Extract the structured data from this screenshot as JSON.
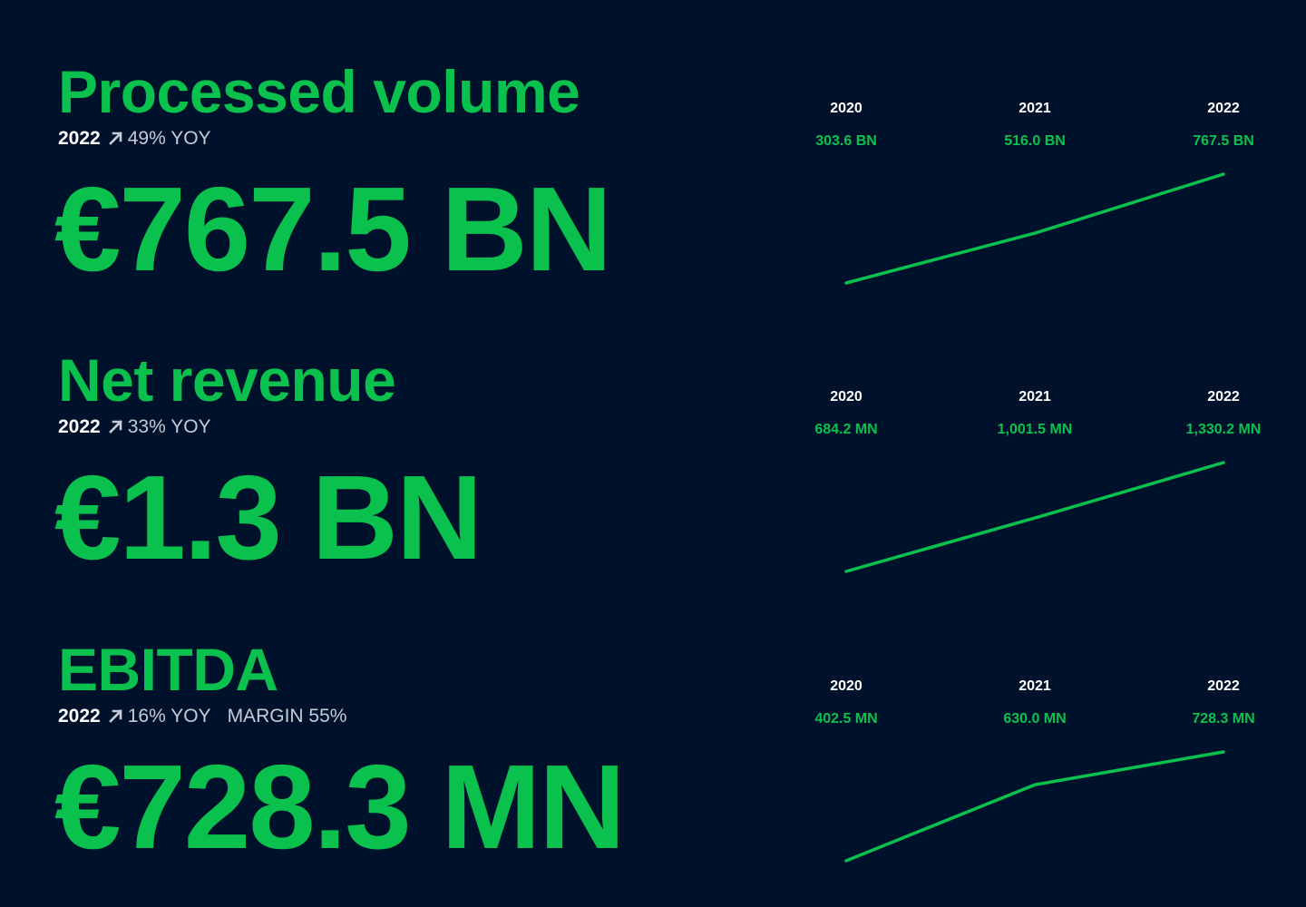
{
  "colors": {
    "background": "#00112c",
    "accent": "#0bc14e",
    "text_white": "#ffffff",
    "text_muted": "#c6ccd6"
  },
  "icons": {
    "trend": "arrow-up-right-icon"
  },
  "metrics": [
    {
      "title": "Processed volume",
      "year": "2022",
      "yoy": "49% YOY",
      "margin": "",
      "headline": "€767.5 BN"
    },
    {
      "title": "Net revenue",
      "year": "2022",
      "yoy": "33% YOY",
      "margin": "",
      "headline": "€1.3 BN"
    },
    {
      "title": "EBITDA",
      "year": "2022",
      "yoy": "16% YOY",
      "margin": "MARGIN 55%",
      "headline": "€728.3 MN"
    }
  ],
  "chart_data": [
    {
      "type": "line",
      "categories": [
        "2020",
        "2021",
        "2022"
      ],
      "values": [
        303.6,
        516.0,
        767.5
      ],
      "value_labels": [
        "303.6 BN",
        "516.0 BN",
        "767.5 BN"
      ],
      "unit": "BN",
      "color": "#0bc14e",
      "grid": false,
      "axes_visible": false
    },
    {
      "type": "line",
      "categories": [
        "2020",
        "2021",
        "2022"
      ],
      "values": [
        684.2,
        1001.5,
        1330.2
      ],
      "value_labels": [
        "684.2 MN",
        "1,001.5 MN",
        "1,330.2 MN"
      ],
      "unit": "MN",
      "color": "#0bc14e",
      "grid": false,
      "axes_visible": false
    },
    {
      "type": "line",
      "categories": [
        "2020",
        "2021",
        "2022"
      ],
      "values": [
        402.5,
        630.0,
        728.3
      ],
      "value_labels": [
        "402.5 MN",
        "630.0 MN",
        "728.3 MN"
      ],
      "unit": "MN",
      "color": "#0bc14e",
      "grid": false,
      "axes_visible": false
    }
  ]
}
